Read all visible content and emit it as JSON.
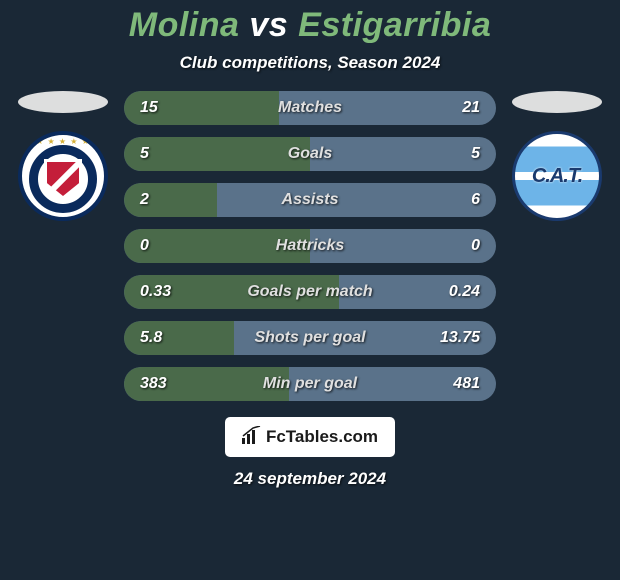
{
  "background_color": "#1a2836",
  "title": {
    "player1": "Molina",
    "vs": "vs",
    "player2": "Estigarribia",
    "p1_color": "#7fb97a",
    "vs_color": "#ffffff",
    "p2_color": "#7fb97a",
    "fontsize": 34
  },
  "subtitle": "Club competitions, Season 2024",
  "bar_colors": {
    "left": "#4a6a4a",
    "right": "#5a728a"
  },
  "stats": [
    {
      "label": "Matches",
      "v1": "15",
      "v2": "21",
      "pct": 41.7
    },
    {
      "label": "Goals",
      "v1": "5",
      "v2": "5",
      "pct": 50.0
    },
    {
      "label": "Assists",
      "v1": "2",
      "v2": "6",
      "pct": 25.0
    },
    {
      "label": "Hattricks",
      "v1": "0",
      "v2": "0",
      "pct": 50.0
    },
    {
      "label": "Goals per match",
      "v1": "0.33",
      "v2": "0.24",
      "pct": 57.9
    },
    {
      "label": "Shots per goal",
      "v1": "5.8",
      "v2": "13.75",
      "pct": 29.7
    },
    {
      "label": "Min per goal",
      "v1": "383",
      "v2": "481",
      "pct": 44.3
    }
  ],
  "shadow_ellipse_color": "#e8e8e8",
  "logos": {
    "left": {
      "name": "argentinos-juniors-logo",
      "ring_color": "#0a2a5c",
      "shield_color": "#c41e3a",
      "cat_text": ""
    },
    "right": {
      "name": "atletico-tucuman-logo",
      "stripe_color": "#6db4e8",
      "border_color": "#1a3a6e",
      "text": "C.A.T."
    }
  },
  "footer": {
    "brand": "FcTables.com",
    "icon": "chart-icon"
  },
  "date": "24 september 2024"
}
